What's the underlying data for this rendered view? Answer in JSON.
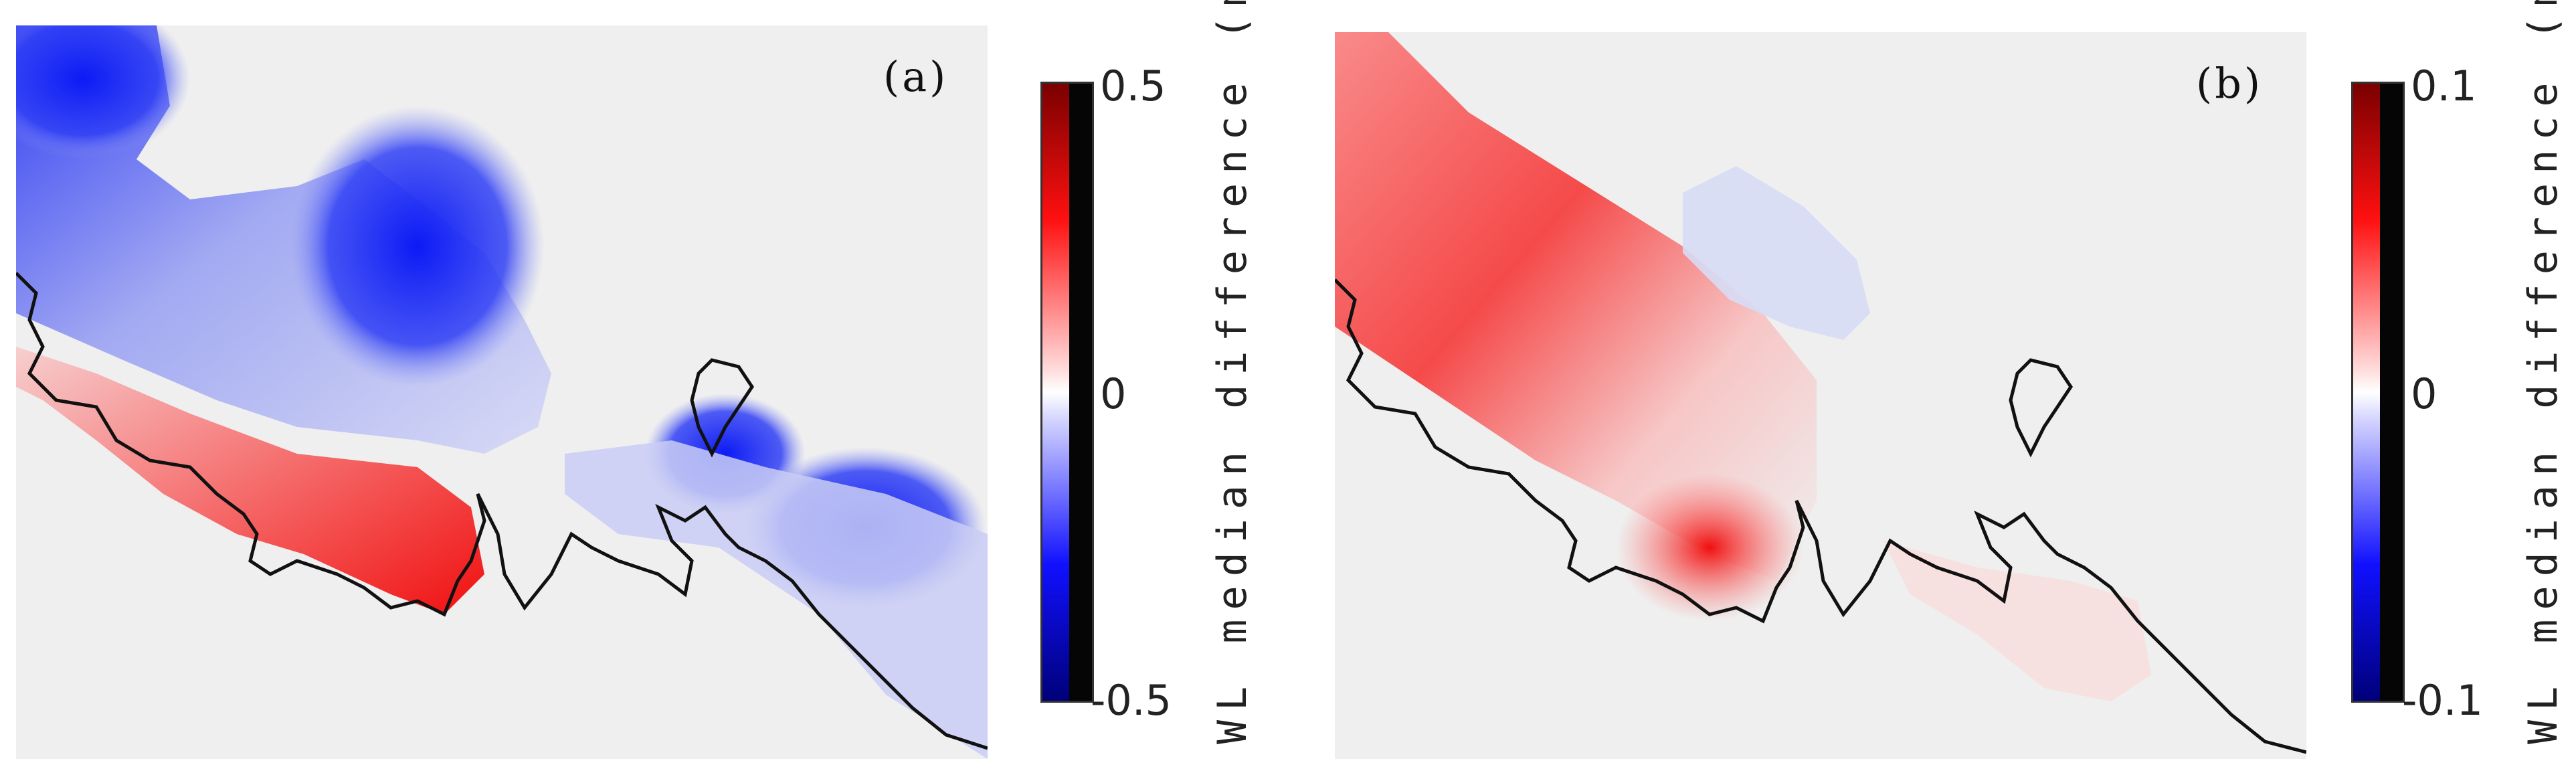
{
  "chart_data": [
    {
      "type": "heatmap",
      "panel_label": "(a)",
      "colorbar": {
        "label": "WL median difference (m)",
        "ticks": [
          "0.5",
          "0",
          "-0.5"
        ],
        "range": [
          -0.5,
          0.5
        ],
        "cmap": [
          "#00007a",
          "#1010ff",
          "#ffffff",
          "#ff1010",
          "#7a0000"
        ]
      },
      "description_of_field": "water level median difference: blue offshore and east, red along western coast"
    },
    {
      "type": "heatmap",
      "panel_label": "(b)",
      "colorbar": {
        "label": "WL median difference (m)",
        "ticks": [
          "0.1",
          "0",
          "-0.1"
        ],
        "range": [
          -0.1,
          0.1
        ],
        "cmap": [
          "#00007a",
          "#1010ff",
          "#ffffff",
          "#ff1010",
          "#7a0000"
        ]
      }
    }
  ],
  "colors": {
    "background": "#efefef",
    "coastline": "#111111",
    "positive": "#ff1010",
    "negative": "#1010ff"
  }
}
